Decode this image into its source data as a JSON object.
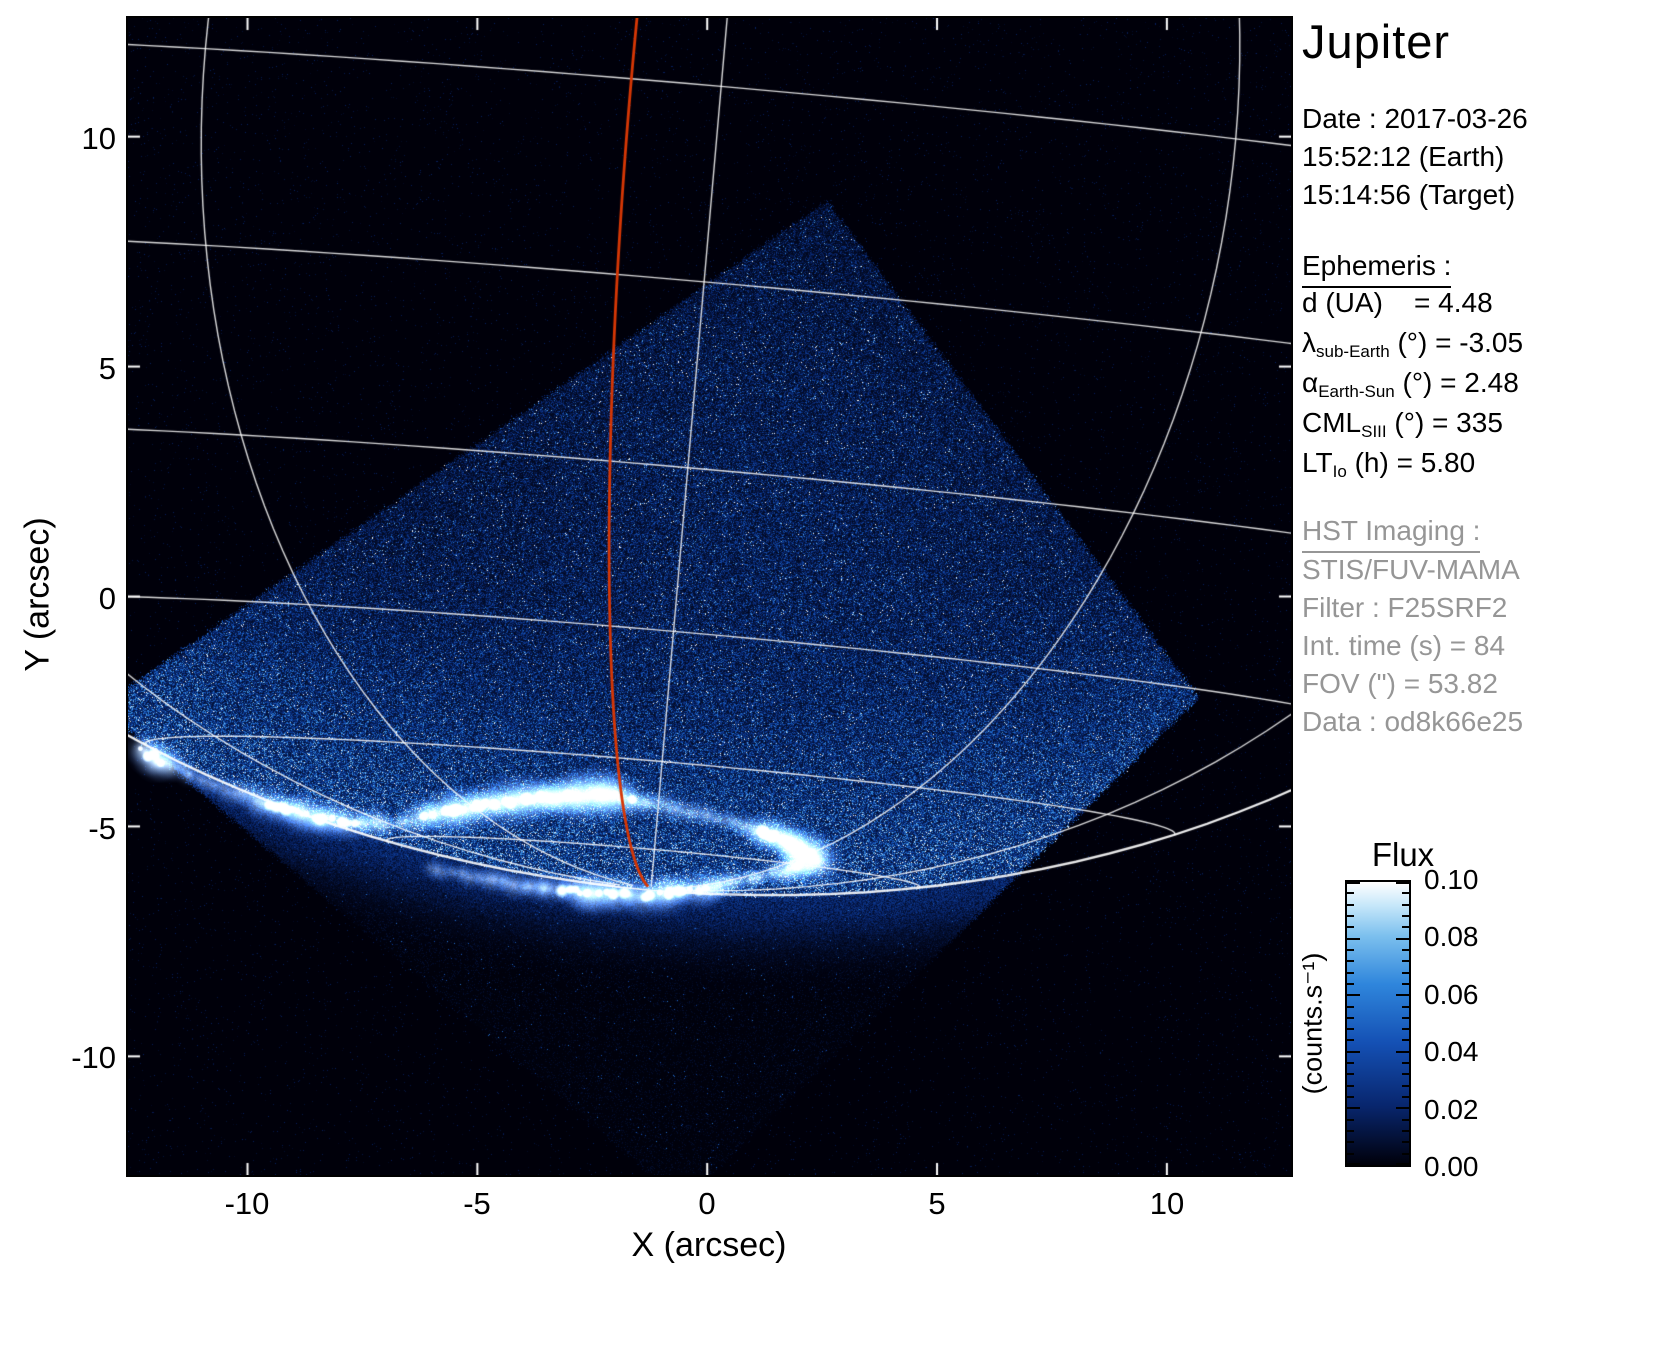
{
  "title": "Jupiter",
  "datetime": {
    "date": "Date : 2017-03-26",
    "earth": "15:52:12 (Earth)",
    "target": "15:14:56 (Target)"
  },
  "ephemeris": {
    "heading": "Ephemeris :",
    "rows": [
      {
        "sym": "d",
        "sub": "",
        "rest": " (UA)    = 4.48"
      },
      {
        "sym": "λ",
        "sub": "sub-Earth",
        "rest": " (°) = -3.05"
      },
      {
        "sym": "α",
        "sub": "Earth-Sun",
        "rest": " (°) = 2.48"
      },
      {
        "sym": "CML",
        "sub": "SIII",
        "rest": " (°) = 335"
      },
      {
        "sym": "LT",
        "sub": "Io",
        "rest": " (h) = 5.80"
      }
    ]
  },
  "hst": {
    "heading": "HST Imaging :",
    "lines": [
      "STIS/FUV-MAMA",
      "Filter : F25SRF2",
      "Int. time (s) = 84",
      "FOV (\") = 53.82",
      "Data : od8k66e25"
    ]
  },
  "colorbar": {
    "title": "Flux",
    "unit": "(counts.s⁻¹)",
    "tick_labels": [
      "0.10",
      "0.08",
      "0.06",
      "0.04",
      "0.02",
      "0.00"
    ]
  },
  "axes": {
    "xlabel": "X (arcsec)",
    "ylabel": "Y (arcsec)",
    "xticks": [
      "-10",
      "-5",
      "0",
      "5",
      "10"
    ],
    "yticks": [
      "10",
      "5",
      "0",
      "-5",
      "-10"
    ]
  },
  "chart_data": {
    "type": "heatmap",
    "title": "Jupiter southern FUV aurora — HST STIS/FUV-MAMA image",
    "xlabel": "X (arcsec)",
    "ylabel": "Y (arcsec)",
    "xlim": [
      -12.6,
      12.7
    ],
    "ylim": [
      -12.58,
      12.58
    ],
    "xticks": [
      -10,
      -5,
      0,
      5,
      10
    ],
    "yticks": [
      10,
      5,
      0,
      -5,
      -10
    ],
    "grid": "planetocentric graticule overlaid in white, reference meridian in red",
    "colorbar": {
      "label": "Flux",
      "unit": "counts.s-1",
      "min": 0.0,
      "max": 0.1,
      "ticks": [
        0.1,
        0.08,
        0.06,
        0.04,
        0.02,
        0.0
      ]
    },
    "observation": {
      "target": "Jupiter",
      "date": "2017-03-26",
      "time_earth": "15:52:12",
      "time_target": "15:14:56",
      "instrument": "STIS/FUV-MAMA",
      "filter": "F25SRF2",
      "int_time_s": 84,
      "fov_arcsec": 53.82,
      "data_id": "od8k66e25"
    },
    "ephemeris_values": {
      "d_UA": 4.48,
      "lambda_sub_earth_deg": -3.05,
      "alpha_earth_sun_deg": 2.48,
      "cml_siii_deg": 335,
      "lt_io_h": 5.8
    },
    "planet": {
      "cx": 0.2,
      "cy": 9.9,
      "a": 22.5,
      "b": 16.35,
      "pa_deg": -5,
      "sub_earth_lat_deg": -3.05,
      "lat_step_deg": 15,
      "lon_step_deg": 30,
      "red_meridian_lon_deg": -5
    },
    "detector_quad": [
      [
        2.6,
        8.6
      ],
      [
        10.7,
        -2.2
      ],
      [
        -0.5,
        -13.2
      ],
      [
        -13.2,
        -2.4
      ]
    ],
    "colormap_stops": [
      [
        0.0,
        "#00000a"
      ],
      [
        0.22,
        "#08266e"
      ],
      [
        0.45,
        "#1450b4"
      ],
      [
        0.65,
        "#2f86dc"
      ],
      [
        0.82,
        "#7cc0ee"
      ],
      [
        0.93,
        "#c8e8fa"
      ],
      [
        1.0,
        "#ffffff"
      ]
    ],
    "aurora_arcs": [
      {
        "pts": [
          [
            -12.35,
            -3.35
          ],
          [
            -11.2,
            -3.9
          ],
          [
            -9.6,
            -4.5
          ],
          [
            -8.3,
            -4.85
          ],
          [
            -6.9,
            -4.95
          ],
          [
            -5.3,
            -4.6
          ],
          [
            -3.8,
            -4.4
          ],
          [
            -2.3,
            -4.3
          ],
          [
            -0.9,
            -4.55
          ],
          [
            0.5,
            -4.9
          ],
          [
            1.6,
            -5.25
          ],
          [
            2.5,
            -5.8
          ]
        ],
        "weights": [
          1.0,
          0.3,
          0.7,
          0.8,
          0.5,
          0.9,
          1.0,
          0.95,
          0.45,
          0.4,
          0.85,
          0.9
        ]
      },
      {
        "pts": [
          [
            -6.0,
            -5.9
          ],
          [
            -4.6,
            -6.2
          ],
          [
            -3.0,
            -6.4
          ],
          [
            -1.4,
            -6.5
          ],
          [
            0.0,
            -6.35
          ],
          [
            1.2,
            -6.05
          ],
          [
            2.2,
            -5.85
          ]
        ],
        "weights": [
          0.3,
          0.5,
          0.7,
          0.75,
          0.65,
          0.55,
          0.6
        ]
      }
    ]
  }
}
